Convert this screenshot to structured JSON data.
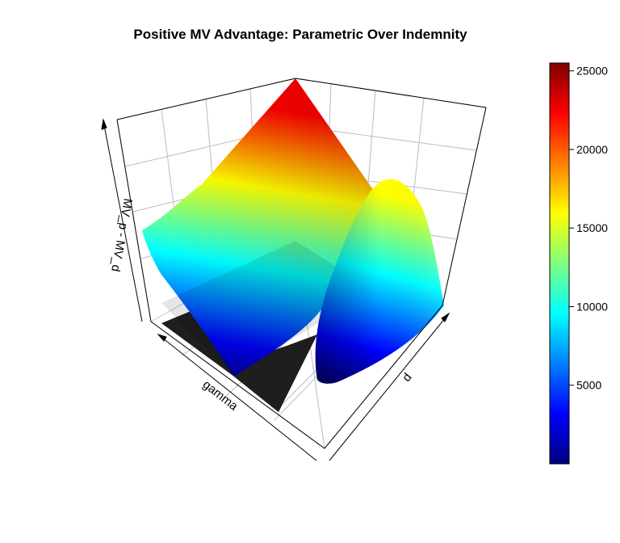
{
  "chart_data": {
    "type": "surface3d",
    "title": "Positive MV Advantage: Parametric Over Indemnity",
    "xlabel": "gamma",
    "ylabel": "d",
    "zlabel": "MV_p - MV_d",
    "colorbar": {
      "ticks": [
        5000,
        10000,
        15000,
        20000,
        25000
      ],
      "tick_labels": [
        "5000",
        "10000",
        "15000",
        "20000",
        "25000"
      ],
      "range": [
        0,
        25500
      ],
      "colors": [
        "#00007f",
        "#0000ff",
        "#007fff",
        "#00ffff",
        "#7fff7f",
        "#ffff00",
        "#ff7f00",
        "#ff0000",
        "#7f0000"
      ]
    },
    "surface": {
      "region_A_max": 25000,
      "region_B_max": 17500,
      "floor_color": "#1e1e1e"
    }
  }
}
